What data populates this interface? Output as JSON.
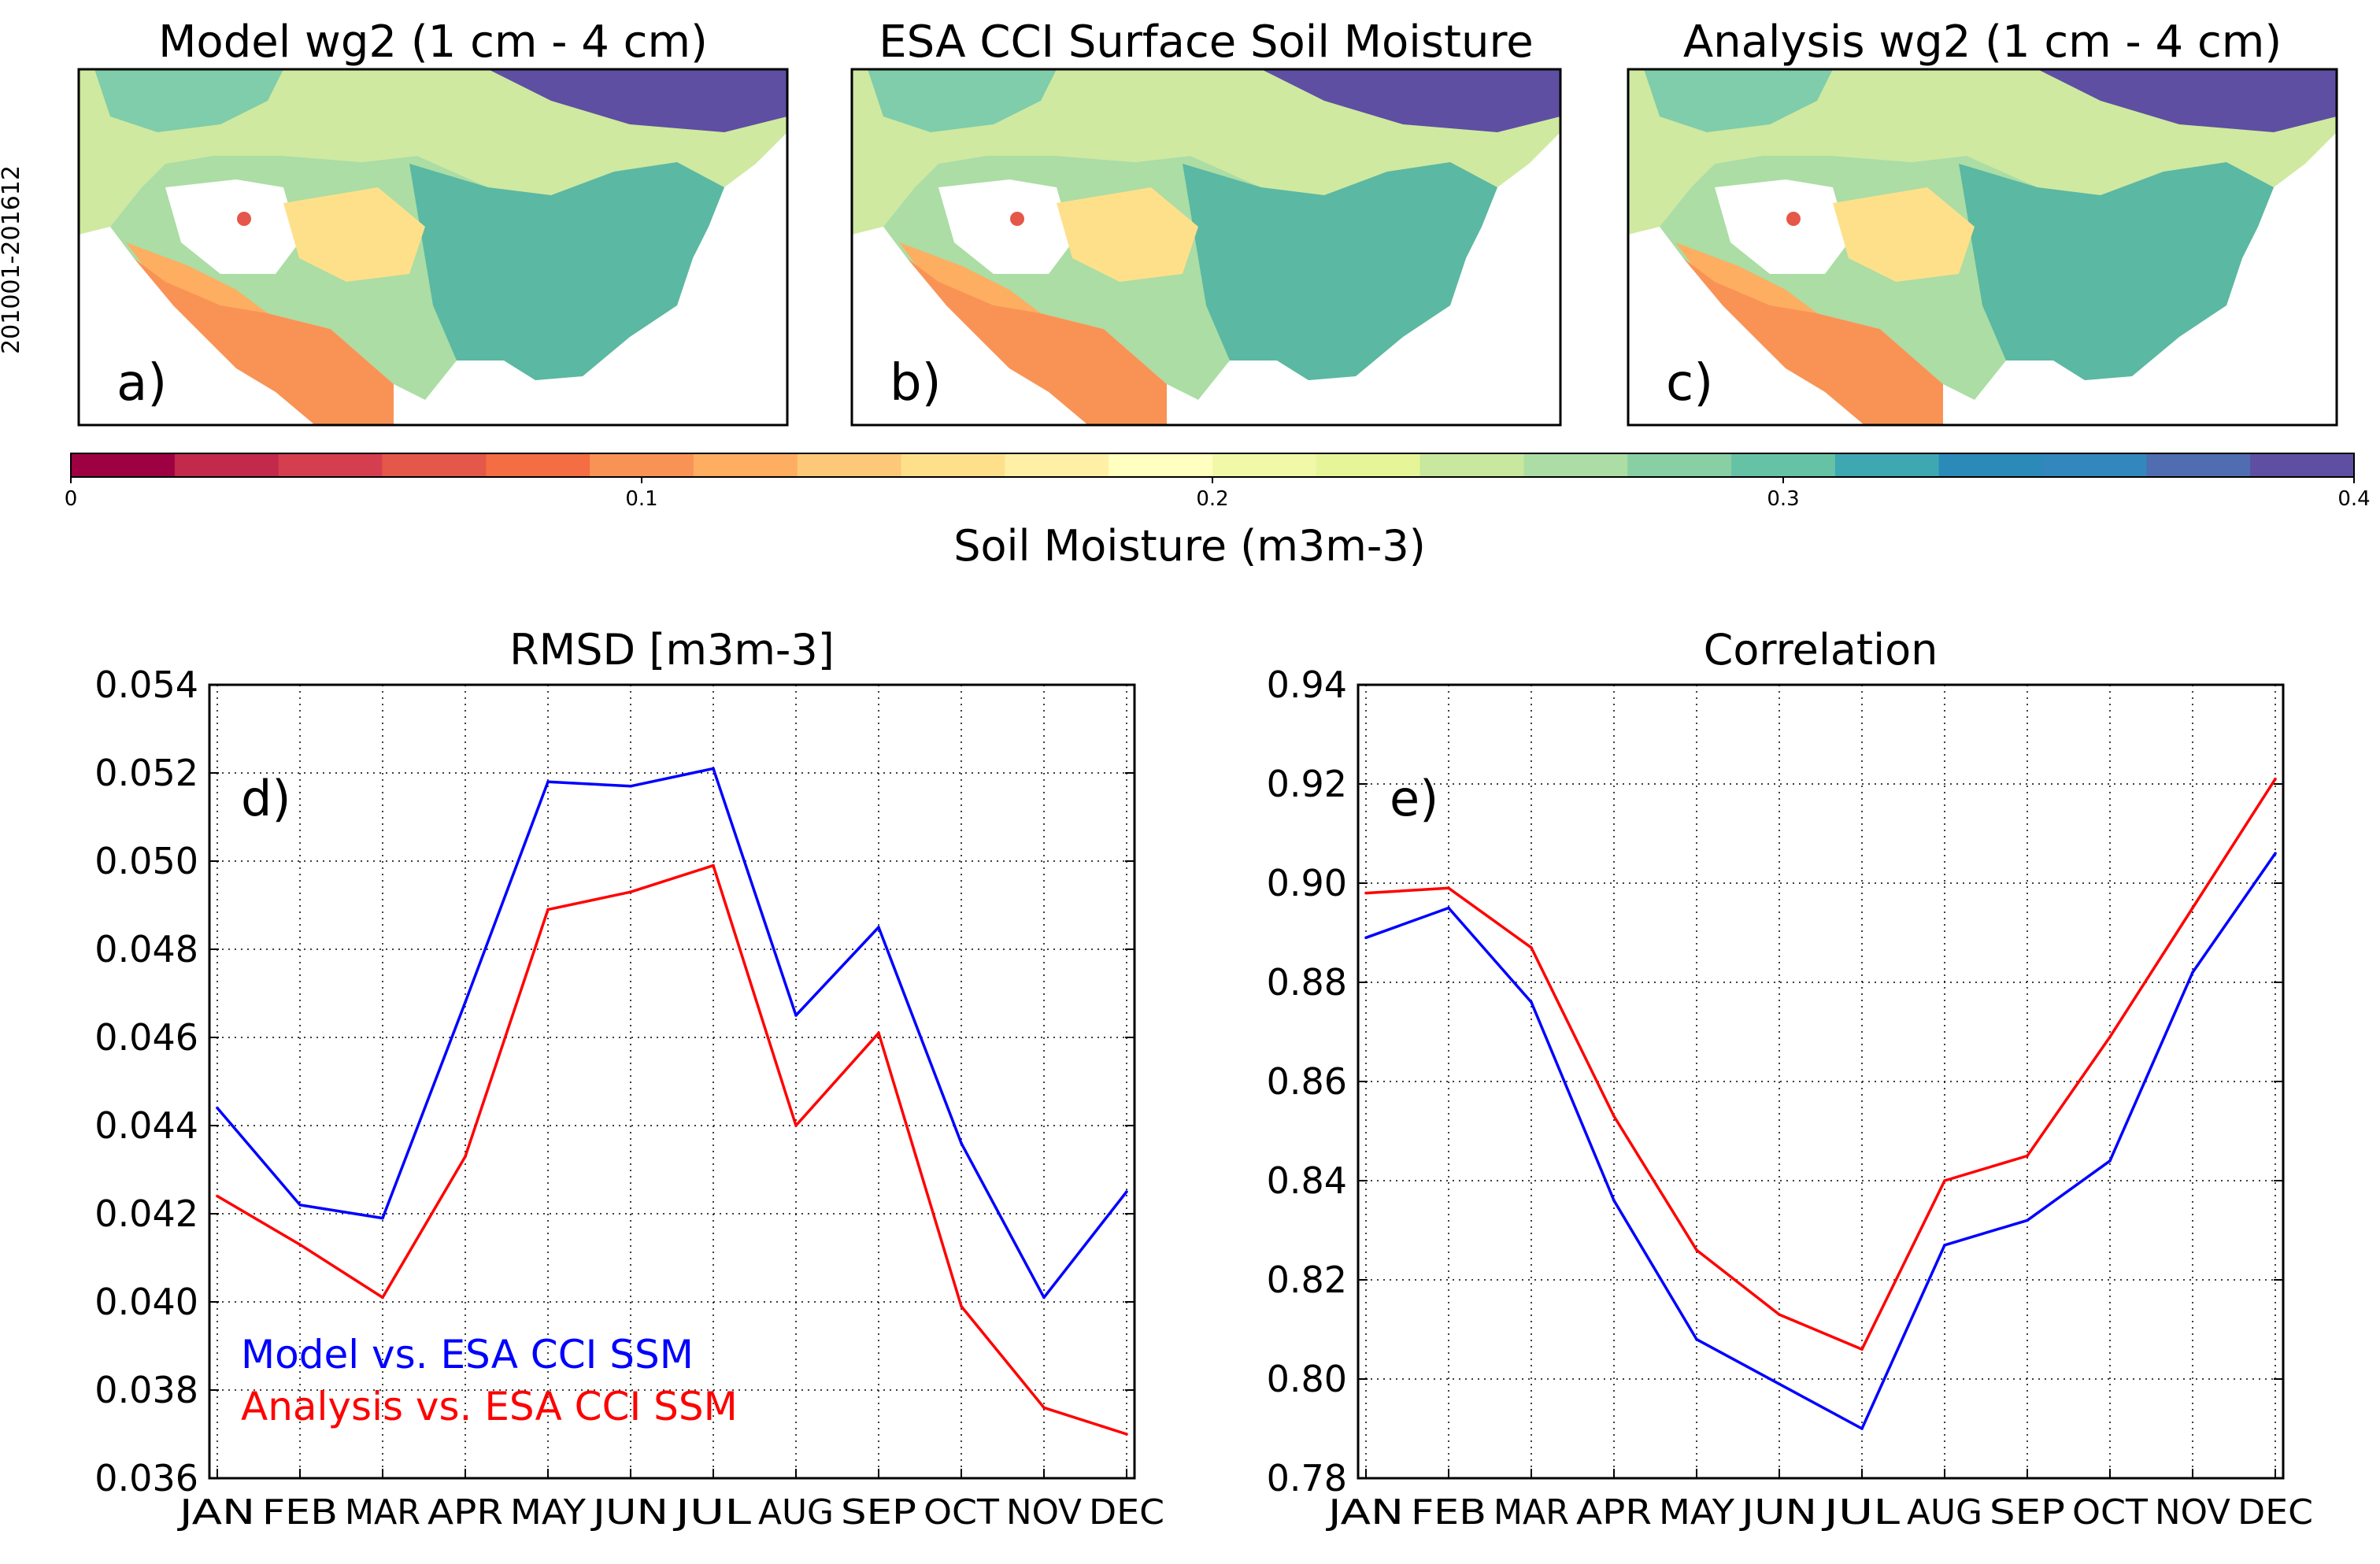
{
  "maps": {
    "period_label": "201001-201612",
    "panels": [
      {
        "title": "Model wg2 (1 cm - 4 cm)",
        "tag": "a)"
      },
      {
        "title": "ESA CCI Surface Soil Moisture",
        "tag": "b)"
      },
      {
        "title": "Analysis wg2 (1 cm - 4 cm)",
        "tag": "c)"
      }
    ]
  },
  "colorbar": {
    "label": "Soil Moisture (m3m-3)",
    "ticks": [
      "0",
      "0.1",
      "0.2",
      "0.3",
      "0.4"
    ],
    "range": [
      0,
      0.4
    ],
    "colors": [
      "#9e0142",
      "#c2294a",
      "#d53e4f",
      "#e55749",
      "#f46d43",
      "#f99355",
      "#fdae61",
      "#fdc877",
      "#fee08b",
      "#fff0a6",
      "#ffffbf",
      "#f1f9a9",
      "#e6f598",
      "#c7e89e",
      "#abdda4",
      "#88cfa4",
      "#66c2a5",
      "#3ea8b2",
      "#2b8ab8",
      "#3288bd",
      "#4f6db0",
      "#5e4fa2"
    ]
  },
  "chart_data": [
    {
      "type": "line",
      "panel_tag": "d)",
      "title": "RMSD [m3m-3]",
      "xlabel": "",
      "ylabel": "",
      "categories": [
        "JAN",
        "FEB",
        "MAR",
        "APR",
        "MAY",
        "JUN",
        "JUL",
        "AUG",
        "SEP",
        "OCT",
        "NOV",
        "DEC"
      ],
      "ylim": [
        0.036,
        0.054
      ],
      "yticks": [
        "0.036",
        "0.038",
        "0.040",
        "0.042",
        "0.044",
        "0.046",
        "0.048",
        "0.050",
        "0.052",
        "0.054"
      ],
      "grid": true,
      "legend": "bottom-left",
      "series": [
        {
          "name": "Model vs. ESA CCI SSM",
          "color": "#0000ff",
          "values": [
            0.0444,
            0.0422,
            0.0419,
            0.0468,
            0.0518,
            0.0517,
            0.0521,
            0.0465,
            0.0485,
            0.0436,
            0.0401,
            0.0425
          ]
        },
        {
          "name": "Analysis vs. ESA CCI SSM",
          "color": "#ff0000",
          "values": [
            0.0424,
            0.0413,
            0.0401,
            0.0433,
            0.0489,
            0.0493,
            0.0499,
            0.044,
            0.0461,
            0.0399,
            0.0376,
            0.037
          ]
        }
      ]
    },
    {
      "type": "line",
      "panel_tag": "e)",
      "title": "Correlation",
      "xlabel": "",
      "ylabel": "",
      "categories": [
        "JAN",
        "FEB",
        "MAR",
        "APR",
        "MAY",
        "JUN",
        "JUL",
        "AUG",
        "SEP",
        "OCT",
        "NOV",
        "DEC"
      ],
      "ylim": [
        0.78,
        0.94
      ],
      "yticks": [
        "0.78",
        "0.80",
        "0.82",
        "0.84",
        "0.86",
        "0.88",
        "0.90",
        "0.92",
        "0.94"
      ],
      "grid": true,
      "legend": "none",
      "series": [
        {
          "name": "Model vs. ESA CCI SSM",
          "color": "#0000ff",
          "values": [
            0.889,
            0.895,
            0.876,
            0.836,
            0.808,
            0.799,
            0.79,
            0.827,
            0.832,
            0.844,
            0.882,
            0.906
          ]
        },
        {
          "name": "Analysis vs. ESA CCI SSM",
          "color": "#ff0000",
          "values": [
            0.898,
            0.899,
            0.887,
            0.853,
            0.826,
            0.813,
            0.806,
            0.84,
            0.845,
            0.869,
            0.895,
            0.921
          ]
        }
      ]
    }
  ]
}
